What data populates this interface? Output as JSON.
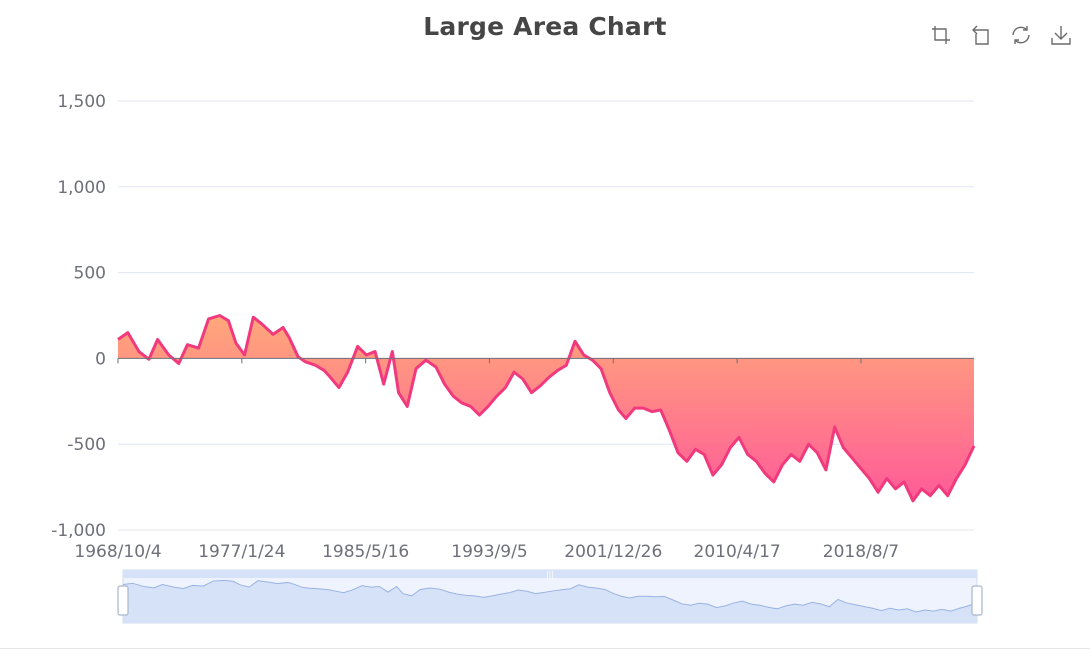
{
  "title": "Large Area Chart",
  "toolbox": [
    {
      "name": "zoom-icon"
    },
    {
      "name": "zoom-reset-icon"
    },
    {
      "name": "restore-icon"
    },
    {
      "name": "save-image-icon"
    }
  ],
  "colors": {
    "line": "#f03a7d",
    "area_top": "#ffa87a",
    "area_bottom": "#ff5b98",
    "axis": "#6e7079",
    "grid": "#e0e6f1",
    "zoom_fill": "#d6e2f7",
    "zoom_line": "#9ab3e3"
  },
  "chart_data": {
    "type": "area",
    "title": "Large Area Chart",
    "ylim": [
      -1000,
      1500
    ],
    "y_ticks": [
      "1,500",
      "1,000",
      "500",
      "0",
      "-500",
      "-1,000"
    ],
    "x_tick_labels": [
      "1968/10/4",
      "1977/1/24",
      "1985/5/16",
      "1993/9/5",
      "2001/12/26",
      "2010/4/17",
      "2018/8/7"
    ],
    "x_range": [
      "1968/10/4",
      "2026/3/8"
    ],
    "grid": true,
    "dataZoom": {
      "start": 0,
      "end": 100
    },
    "series": [
      {
        "x": [
          "1968/10/4",
          "1969/6/1",
          "1970/3/1",
          "1970/11/1",
          "1971/6/1",
          "1972/3/1",
          "1972/11/1",
          "1973/6/1",
          "1974/3/1",
          "1974/11/1",
          "1975/8/1",
          "1976/3/1",
          "1976/9/1",
          "1977/4/1",
          "1977/11/1",
          "1978/6/1",
          "1979/3/1",
          "1979/11/1",
          "1980/4/1",
          "1980/11/1",
          "1981/5/1",
          "1982/1/1",
          "1982/8/1",
          "1983/1/1",
          "1983/8/1",
          "1984/3/1",
          "1984/11/1",
          "1985/6/1",
          "1986/1/1",
          "1986/8/1",
          "1987/3/1",
          "1987/8/1",
          "1988/3/1",
          "1988/10/1",
          "1989/6/1",
          "1990/2/1",
          "1990/9/1",
          "1991/4/1",
          "1991/11/1",
          "1992/6/1",
          "1993/1/1",
          "1993/8/1",
          "1994/3/1",
          "1994/10/1",
          "1995/5/1",
          "1995/12/1",
          "1996/7/1",
          "1997/2/1",
          "1997/9/1",
          "1998/4/1",
          "1998/11/1",
          "1999/6/1",
          "2000/1/1",
          "2000/8/1",
          "2001/3/1",
          "2001/10/1",
          "2002/5/1",
          "2002/11/1",
          "2003/6/1",
          "2004/1/1",
          "2004/8/1",
          "2005/3/1",
          "2005/10/1",
          "2006/5/1",
          "2006/12/1",
          "2007/7/1",
          "2008/2/1",
          "2008/9/1",
          "2009/4/1",
          "2009/11/1",
          "2010/6/1",
          "2011/1/1",
          "2011/8/1",
          "2012/3/1",
          "2012/10/1",
          "2013/5/1",
          "2013/12/1",
          "2014/7/1",
          "2015/2/1",
          "2015/9/1",
          "2016/4/1",
          "2016/11/1",
          "2017/6/1",
          "2018/1/1",
          "2018/8/1",
          "2019/3/1",
          "2019/10/1",
          "2020/5/1",
          "2020/12/1",
          "2021/7/1",
          "2022/2/1",
          "2022/9/1",
          "2023/4/1",
          "2023/11/1",
          "2024/6/1",
          "2025/1/1",
          "2025/8/1",
          "2026/3/8"
        ],
        "values": [
          110,
          150,
          40,
          -5,
          110,
          20,
          -30,
          80,
          60,
          230,
          250,
          220,
          90,
          20,
          240,
          200,
          140,
          180,
          120,
          10,
          -20,
          -40,
          -70,
          -110,
          -170,
          -80,
          70,
          20,
          40,
          -150,
          40,
          -200,
          -280,
          -60,
          -10,
          -50,
          -150,
          -220,
          -260,
          -280,
          -330,
          -280,
          -220,
          -170,
          -80,
          -120,
          -200,
          -160,
          -110,
          -70,
          -40,
          100,
          20,
          -10,
          -60,
          -200,
          -300,
          -350,
          -290,
          -290,
          -310,
          -300,
          -420,
          -550,
          -600,
          -530,
          -560,
          -680,
          -620,
          -520,
          -460,
          -560,
          -600,
          -670,
          -720,
          -620,
          -560,
          -600,
          -500,
          -550,
          -650,
          -400,
          -520,
          -580,
          -640,
          -700,
          -780,
          -700,
          -760,
          -720,
          -830,
          -760,
          -800,
          -740,
          -800,
          -700,
          -620,
          -510
        ]
      }
    ]
  }
}
